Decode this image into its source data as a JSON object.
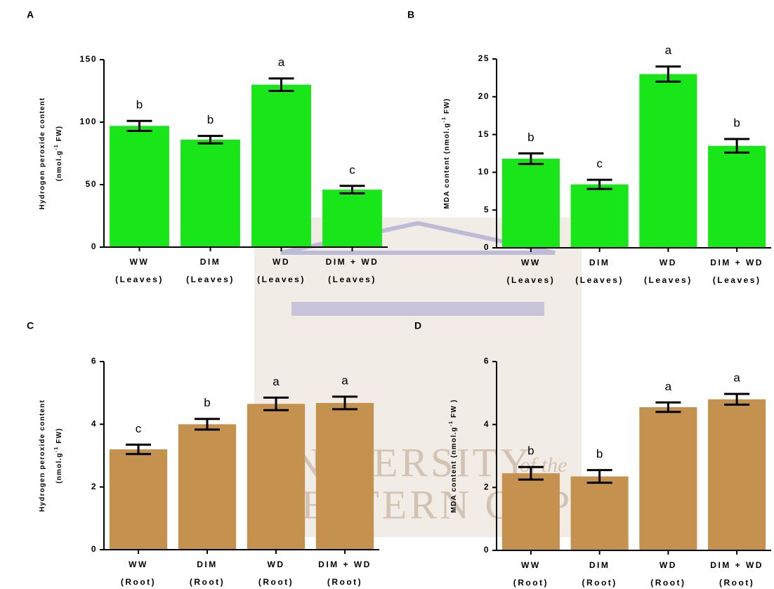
{
  "chart_data": [
    {
      "type": "bar",
      "panel": "A",
      "color": "#19e619",
      "ylabel": [
        [
          "Hydrogen peroxide content"
        ],
        [
          "(nmol.g",
          "-1",
          " FW)"
        ]
      ],
      "categories": [
        [
          "WW",
          "(Leaves)"
        ],
        [
          "DIM",
          "(Leaves)"
        ],
        [
          "WD",
          "(Leaves)"
        ],
        [
          "DIM + WD",
          "(Leaves)"
        ]
      ],
      "values": [
        97,
        86,
        130,
        46
      ],
      "errors": [
        4,
        3,
        5,
        3
      ],
      "letters": [
        "b",
        "b",
        "a",
        "c"
      ],
      "ylim": [
        0,
        150
      ],
      "yticks": [
        0,
        50,
        100,
        150
      ]
    },
    {
      "type": "bar",
      "panel": "B",
      "color": "#19e619",
      "ylabel": [
        [
          "MDA content (nmol.g",
          "-1",
          " FW)"
        ]
      ],
      "categories": [
        [
          "WW",
          "(Leaves)"
        ],
        [
          "DIM",
          "(Leaves)"
        ],
        [
          "WD",
          "(Leaves)"
        ],
        [
          "DIM + WD",
          "(Leaves)"
        ]
      ],
      "values": [
        11.8,
        8.4,
        23,
        13.5
      ],
      "errors": [
        0.7,
        0.6,
        1,
        0.9
      ],
      "letters": [
        "b",
        "c",
        "a",
        "b"
      ],
      "ylim": [
        0,
        25
      ],
      "yticks": [
        0,
        5,
        10,
        15,
        20,
        25
      ]
    },
    {
      "type": "bar",
      "panel": "C",
      "color": "#c4914f",
      "ylabel": [
        [
          "Hydrogen peroxide content"
        ],
        [
          "(nmol.g",
          "-1",
          " FW)"
        ]
      ],
      "categories": [
        [
          "WW",
          "(Root)"
        ],
        [
          "DIM",
          "(Root)"
        ],
        [
          "WD",
          "(Root)"
        ],
        [
          "DIM + WD",
          "(Root)"
        ]
      ],
      "values": [
        3.2,
        4.0,
        4.65,
        4.68
      ],
      "errors": [
        0.15,
        0.17,
        0.2,
        0.2
      ],
      "letters": [
        "c",
        "b",
        "a",
        "a"
      ],
      "ylim": [
        0,
        6
      ],
      "yticks": [
        0,
        2,
        4,
        6
      ]
    },
    {
      "type": "bar",
      "panel": "D",
      "color": "#c4914f",
      "ylabel": [
        [
          "MDA content (nmol.g",
          "-1",
          " FW )"
        ]
      ],
      "categories": [
        [
          "WW",
          "(Root)"
        ],
        [
          "DIM",
          "(Root)"
        ],
        [
          "WD",
          "(Root)"
        ],
        [
          "DIM + WD",
          "(Root)"
        ]
      ],
      "values": [
        2.45,
        2.35,
        4.55,
        4.8
      ],
      "errors": [
        0.2,
        0.2,
        0.15,
        0.17
      ],
      "letters": [
        "b",
        "b",
        "a",
        "a"
      ],
      "ylim": [
        0,
        6
      ],
      "yticks": [
        0,
        2,
        4,
        6
      ]
    }
  ],
  "watermark": [
    "UNIVERSITY",
    "of the",
    "WESTERN CAPE"
  ]
}
